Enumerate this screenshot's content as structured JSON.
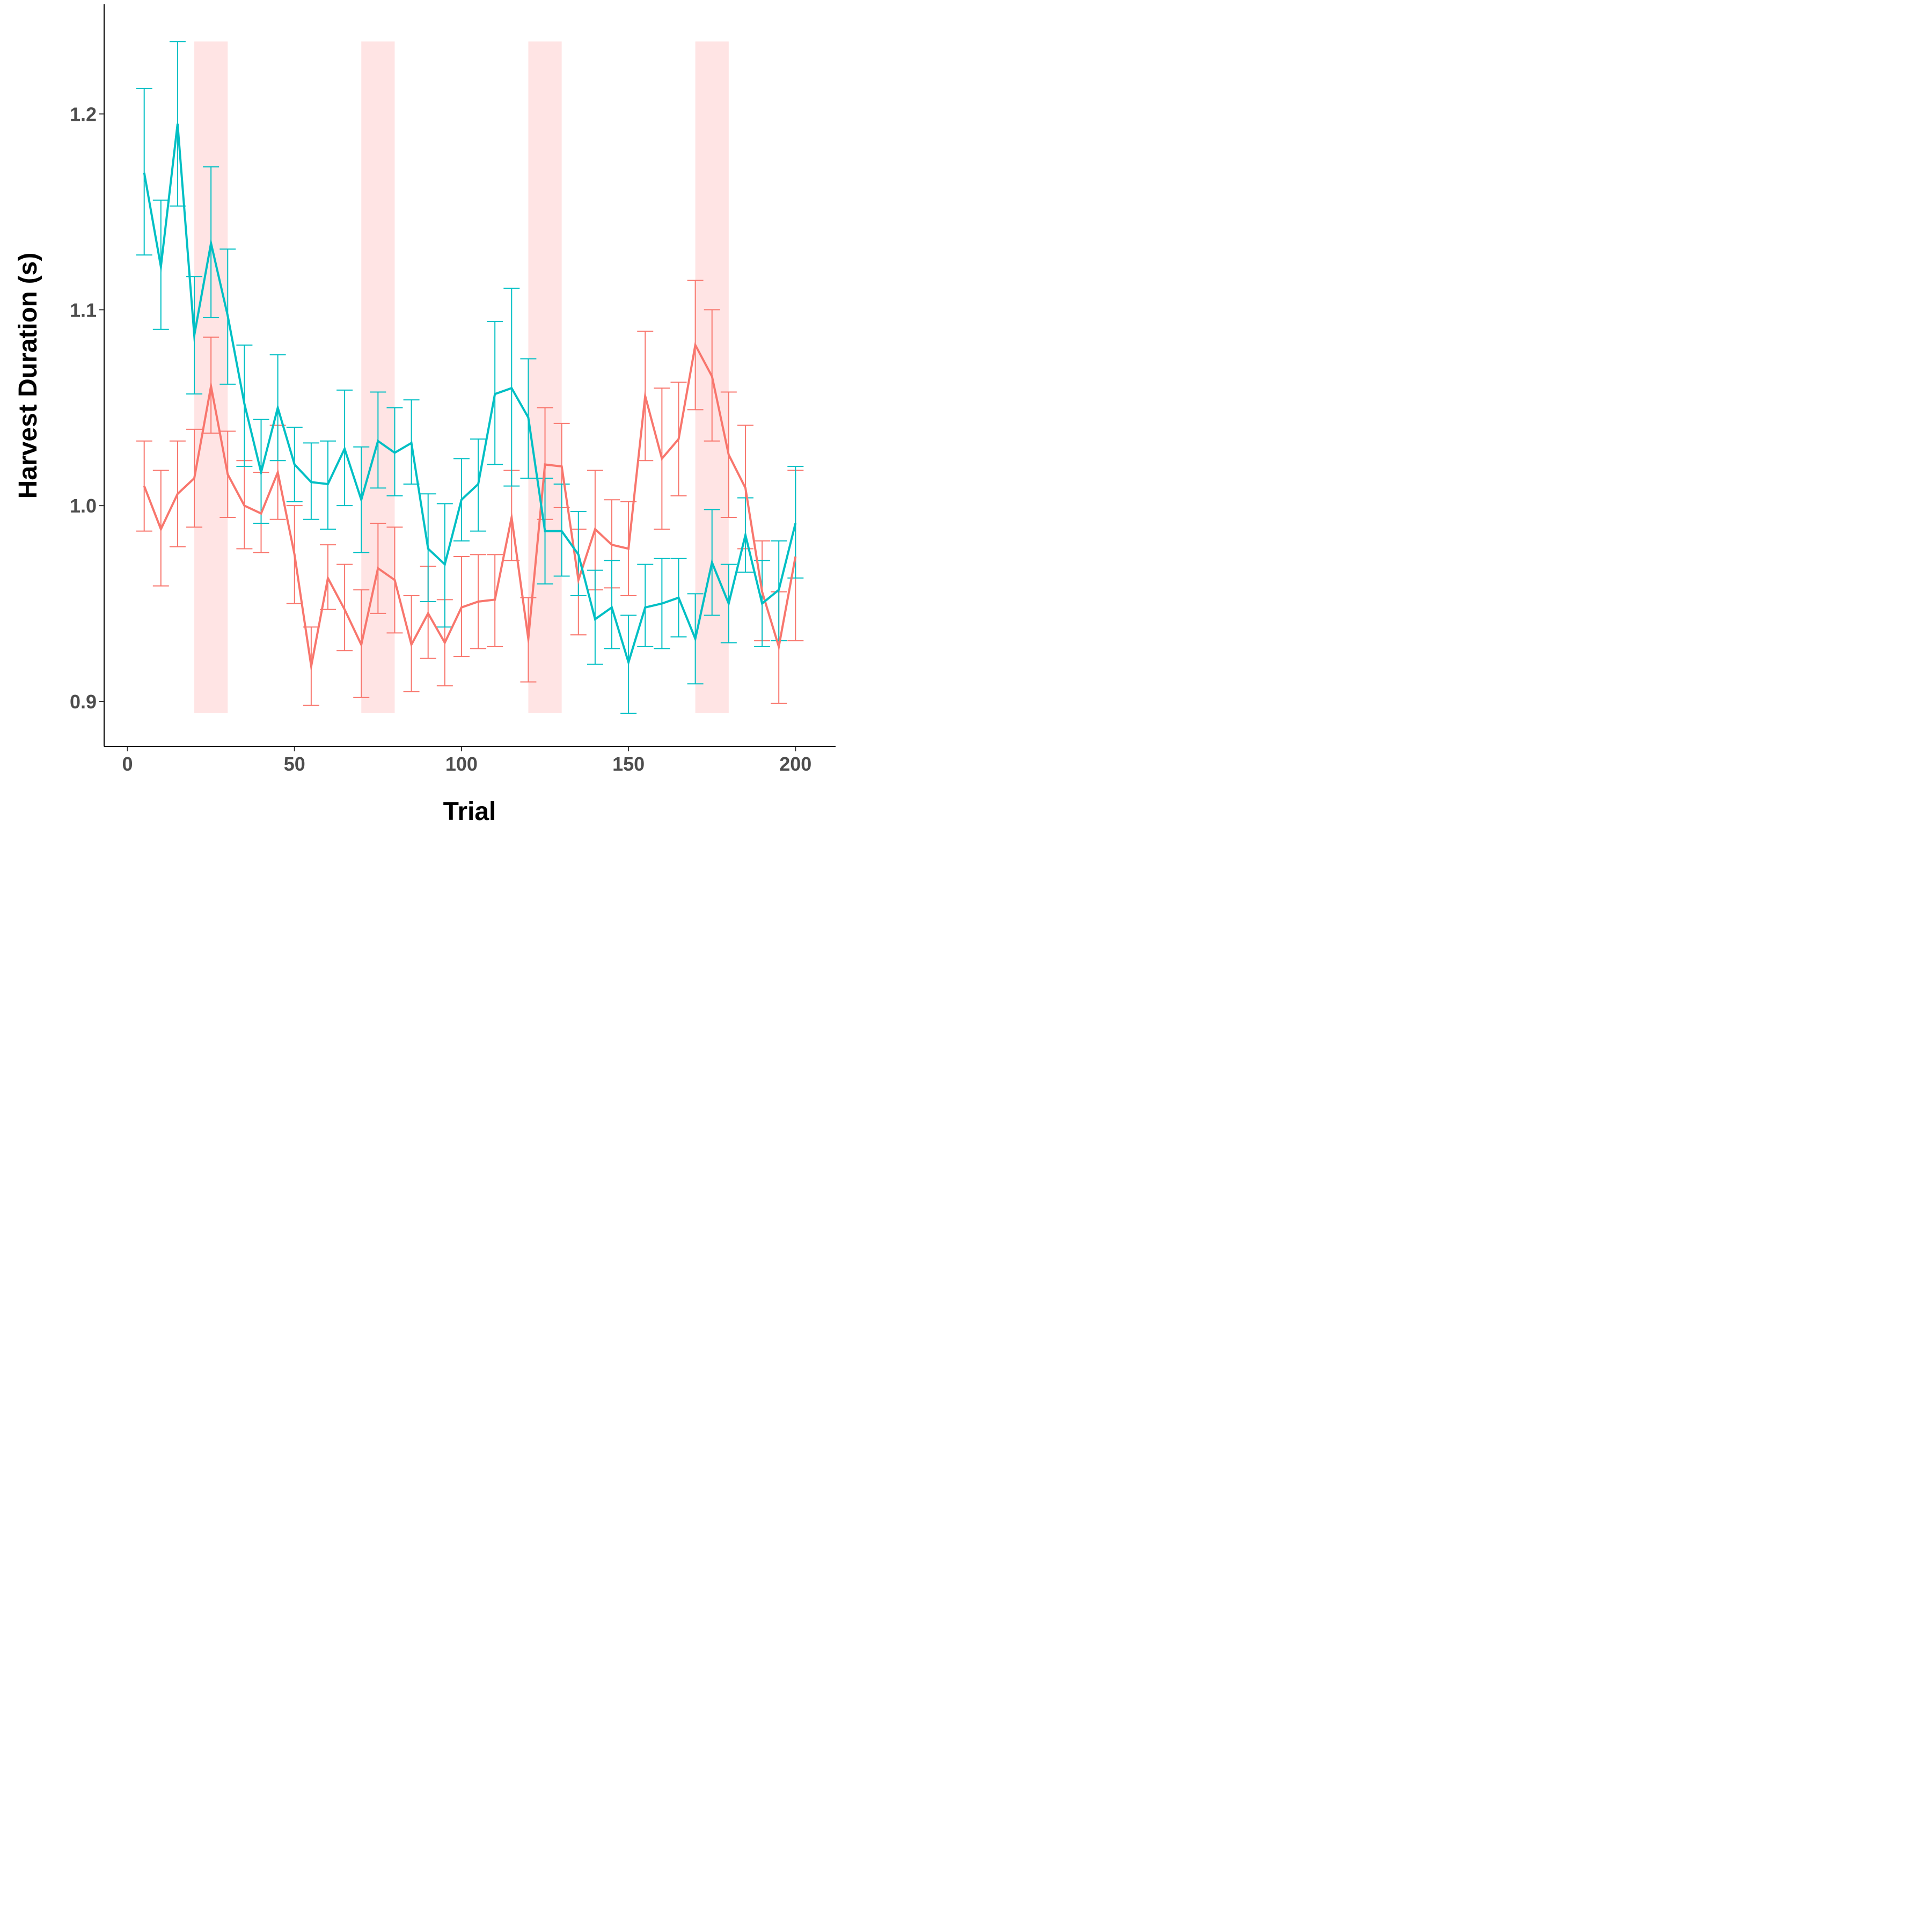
{
  "chart_data": {
    "type": "line",
    "title": "",
    "xlabel": "Trial",
    "ylabel": "Harvest Duration (s)",
    "xlim": [
      -7,
      212
    ],
    "ylim": [
      0.877,
      1.256
    ],
    "x_ticks": [
      0,
      50,
      100,
      150,
      200
    ],
    "x_tick_labels": [
      "0",
      "50",
      "100",
      "150",
      "200"
    ],
    "y_ticks": [
      0.9,
      1.0,
      1.1,
      1.2
    ],
    "y_tick_labels": [
      "0.9",
      "1.0",
      "1.1",
      "1.2"
    ],
    "grid": false,
    "shaded_regions": [
      {
        "x_start": 20,
        "x_end": 30,
        "y_start": 0.894,
        "y_end": 1.237
      },
      {
        "x_start": 70,
        "x_end": 80,
        "y_start": 0.894,
        "y_end": 1.237
      },
      {
        "x_start": 120,
        "x_end": 130,
        "y_start": 0.894,
        "y_end": 1.237
      },
      {
        "x_start": 170,
        "x_end": 180,
        "y_start": 0.894,
        "y_end": 1.237
      }
    ],
    "shade_color": "#ffe4e4",
    "x": [
      5,
      10,
      15,
      20,
      25,
      30,
      35,
      40,
      45,
      50,
      55,
      60,
      65,
      70,
      75,
      80,
      85,
      90,
      95,
      100,
      105,
      110,
      115,
      120,
      125,
      130,
      135,
      140,
      145,
      150,
      155,
      160,
      165,
      170,
      175,
      180,
      185,
      190,
      195,
      200
    ],
    "series": [
      {
        "name": "red",
        "color": "#f8766d",
        "values": [
          1.01,
          0.988,
          1.006,
          1.014,
          1.061,
          1.016,
          1.0,
          0.996,
          1.017,
          0.975,
          0.918,
          0.963,
          0.947,
          0.929,
          0.968,
          0.962,
          0.929,
          0.945,
          0.93,
          0.948,
          0.951,
          0.952,
          0.994,
          0.932,
          1.021,
          1.02,
          0.962,
          0.988,
          0.98,
          0.978,
          1.056,
          1.024,
          1.034,
          1.082,
          1.066,
          1.026,
          1.009,
          0.956,
          0.928,
          0.974
        ],
        "err_low": [
          0.987,
          0.959,
          0.979,
          0.989,
          1.037,
          0.994,
          0.978,
          0.976,
          0.993,
          0.95,
          0.898,
          0.947,
          0.926,
          0.902,
          0.945,
          0.935,
          0.905,
          0.922,
          0.908,
          0.923,
          0.927,
          0.928,
          0.972,
          0.91,
          0.993,
          0.999,
          0.934,
          0.957,
          0.958,
          0.954,
          1.023,
          0.988,
          1.005,
          1.049,
          1.033,
          0.994,
          0.978,
          0.931,
          0.899,
          0.931
        ],
        "err_high": [
          1.033,
          1.018,
          1.033,
          1.039,
          1.086,
          1.038,
          1.023,
          1.017,
          1.041,
          1.0,
          0.938,
          0.98,
          0.97,
          0.957,
          0.991,
          0.989,
          0.954,
          0.969,
          0.952,
          0.974,
          0.975,
          0.975,
          1.018,
          0.953,
          1.05,
          1.042,
          0.988,
          1.018,
          1.003,
          1.002,
          1.089,
          1.06,
          1.063,
          1.115,
          1.1,
          1.058,
          1.041,
          0.982,
          0.956,
          1.018
        ]
      },
      {
        "name": "teal",
        "color": "#00bfc4",
        "values": [
          1.17,
          1.122,
          1.195,
          1.087,
          1.134,
          1.097,
          1.052,
          1.017,
          1.05,
          1.021,
          1.012,
          1.011,
          1.029,
          1.003,
          1.033,
          1.027,
          1.032,
          0.978,
          0.97,
          1.003,
          1.011,
          1.057,
          1.06,
          1.045,
          0.987,
          0.987,
          0.975,
          0.942,
          0.948,
          0.92,
          0.948,
          0.95,
          0.953,
          0.932,
          0.971,
          0.95,
          0.985,
          0.95,
          0.957,
          0.991
        ],
        "err_low": [
          1.128,
          1.09,
          1.153,
          1.057,
          1.096,
          1.062,
          1.02,
          0.991,
          1.023,
          1.002,
          0.993,
          0.988,
          1.0,
          0.976,
          1.009,
          1.005,
          1.011,
          0.951,
          0.938,
          0.982,
          0.987,
          1.021,
          1.01,
          1.014,
          0.96,
          0.964,
          0.954,
          0.919,
          0.927,
          0.894,
          0.928,
          0.927,
          0.933,
          0.909,
          0.944,
          0.93,
          0.966,
          0.928,
          0.931,
          0.963
        ],
        "err_high": [
          1.213,
          1.156,
          1.237,
          1.117,
          1.173,
          1.131,
          1.082,
          1.044,
          1.077,
          1.04,
          1.032,
          1.033,
          1.059,
          1.03,
          1.058,
          1.05,
          1.054,
          1.006,
          1.001,
          1.024,
          1.034,
          1.094,
          1.111,
          1.075,
          1.014,
          1.011,
          0.997,
          0.967,
          0.972,
          0.944,
          0.97,
          0.973,
          0.973,
          0.955,
          0.998,
          0.97,
          1.004,
          0.972,
          0.982,
          1.02
        ]
      }
    ]
  }
}
